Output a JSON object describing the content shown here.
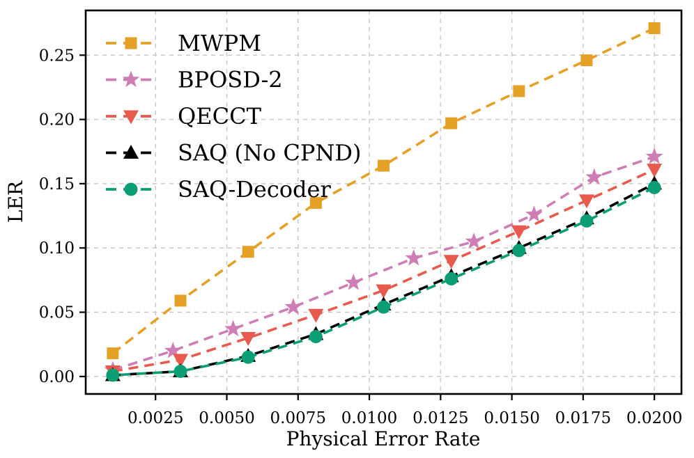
{
  "chart_data": {
    "type": "line",
    "title": "",
    "xlabel": "Physical Error Rate",
    "ylabel": "LER",
    "grid": true,
    "grid_color": "#c9c9c9",
    "legend_position": "upper-left",
    "xlim": [
      5e-05,
      0.02095
    ],
    "ylim": [
      -0.0136,
      0.2848
    ],
    "x_ticks": [
      0.0025,
      0.005,
      0.0075,
      0.01,
      0.0125,
      0.015,
      0.0175,
      0.02
    ],
    "x_tick_labels": [
      "0.0025",
      "0.0050",
      "0.0075",
      "0.0100",
      "0.0125",
      "0.0150",
      "0.0175",
      "0.0200"
    ],
    "y_ticks": [
      0.0,
      0.05,
      0.1,
      0.15,
      0.2,
      0.25
    ],
    "y_tick_labels": [
      "0.00",
      "0.05",
      "0.10",
      "0.15",
      "0.20",
      "0.25"
    ],
    "series": [
      {
        "name": "MWPM",
        "color": "#E5A125",
        "marker": "square",
        "linestyle": "dashed",
        "x": [
          0.001,
          0.003375,
          0.00575,
          0.008125,
          0.0105,
          0.012875,
          0.01525,
          0.017625,
          0.02
        ],
        "y": [
          0.018,
          0.059,
          0.097,
          0.135,
          0.164,
          0.197,
          0.222,
          0.246,
          0.271
        ]
      },
      {
        "name": "BPOSD-2",
        "color": "#CF7EB5",
        "marker": "star",
        "linestyle": "dashed",
        "x": [
          0.001,
          0.003111,
          0.005222,
          0.007333,
          0.009444,
          0.011556,
          0.013667,
          0.015778,
          0.017889,
          0.02
        ],
        "y": [
          0.005,
          0.02,
          0.037,
          0.054,
          0.073,
          0.092,
          0.105,
          0.126,
          0.155,
          0.171
        ]
      },
      {
        "name": "QECCT",
        "color": "#E85A4E",
        "marker": "triangle-down",
        "linestyle": "dashed",
        "x": [
          0.001,
          0.003375,
          0.00575,
          0.008125,
          0.0105,
          0.012875,
          0.01525,
          0.017625,
          0.02
        ],
        "y": [
          0.004,
          0.013,
          0.03,
          0.048,
          0.067,
          0.09,
          0.113,
          0.137,
          0.161
        ]
      },
      {
        "name": "SAQ (No CPND)",
        "color": "#000000",
        "marker": "triangle-up",
        "linestyle": "dashed",
        "x": [
          0.001,
          0.003375,
          0.00575,
          0.008125,
          0.0105,
          0.012875,
          0.01525,
          0.017625,
          0.02
        ],
        "y": [
          0.001,
          0.004,
          0.016,
          0.033,
          0.056,
          0.078,
          0.1,
          0.123,
          0.15
        ]
      },
      {
        "name": "SAQ-Decoder",
        "color": "#0B9E74",
        "marker": "circle",
        "linestyle": "dashed",
        "x": [
          0.001,
          0.003375,
          0.00575,
          0.008125,
          0.0105,
          0.012875,
          0.01525,
          0.017625,
          0.02
        ],
        "y": [
          0.001,
          0.004,
          0.015,
          0.031,
          0.054,
          0.076,
          0.098,
          0.121,
          0.147
        ]
      }
    ]
  }
}
